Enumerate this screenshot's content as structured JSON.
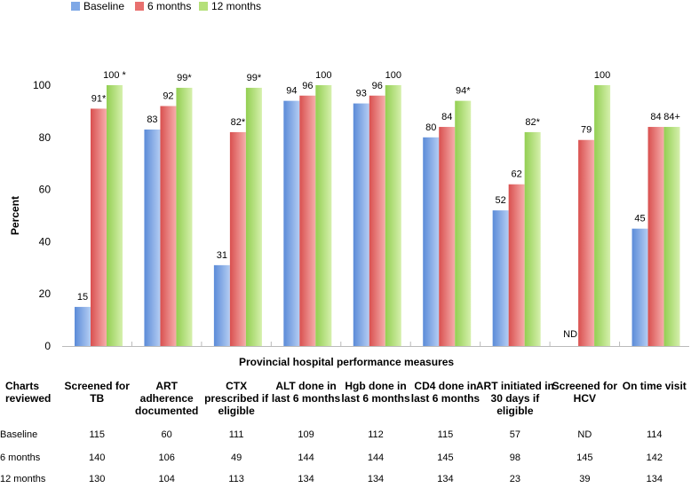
{
  "chart_data": {
    "type": "bar",
    "title": "",
    "xlabel": "Provincial hospital performance measures",
    "ylabel": "Percent",
    "ylim": [
      0,
      100
    ],
    "yticks": [
      0,
      20,
      40,
      60,
      80,
      100
    ],
    "legend_position": "top-left",
    "categories": [
      "Screened for TB",
      "ART adherence documented",
      "CTX prescribed if eligible",
      "ALT done in last 6 months",
      "Hgb done in last 6 months",
      "CD4 done in last 6 months",
      "ART initiated in 30 days if eligible",
      "Screened for HCV",
      "On time visit"
    ],
    "series": [
      {
        "name": "Baseline",
        "color": "#7fa8e6",
        "values": [
          15,
          83,
          31,
          94,
          93,
          80,
          52,
          null,
          45
        ],
        "labels": [
          "15",
          "83",
          "31",
          "94",
          "93",
          "80",
          "52",
          "ND",
          "45"
        ]
      },
      {
        "name": "6 months",
        "color": "#e8706f",
        "values": [
          91,
          92,
          82,
          96,
          96,
          84,
          62,
          79,
          84
        ],
        "labels": [
          "91*",
          "92",
          "82*",
          "96",
          "96",
          "84",
          "62",
          "79",
          "84"
        ]
      },
      {
        "name": "12 months",
        "color": "#b5e07a",
        "values": [
          100,
          99,
          99,
          100,
          100,
          94,
          82,
          100,
          84
        ],
        "labels": [
          "100 *",
          "99*",
          "99*",
          "100",
          "100",
          "94*",
          "82*",
          "100",
          "84+"
        ]
      }
    ]
  },
  "table": {
    "header_label": "Charts reviewed",
    "column_headers": [
      "Screened for TB",
      "ART adherence documented",
      "CTX prescribed if eligible",
      "ALT done in last 6 months",
      "Hgb done in last 6 months",
      "CD4 done in last 6 months",
      "ART initiated in 30 days if eligible",
      "Screened for HCV",
      "On time visit"
    ],
    "rows": [
      {
        "label": "Baseline",
        "values": [
          "115",
          "60",
          "111",
          "109",
          "112",
          "115",
          "57",
          "ND",
          "114"
        ]
      },
      {
        "label": "6 months",
        "values": [
          "140",
          "106",
          "49",
          "144",
          "144",
          "145",
          "98",
          "145",
          "142"
        ]
      },
      {
        "label": "12 months",
        "values": [
          "130",
          "104",
          "113",
          "134",
          "134",
          "134",
          "23",
          "39",
          "134"
        ]
      }
    ]
  }
}
